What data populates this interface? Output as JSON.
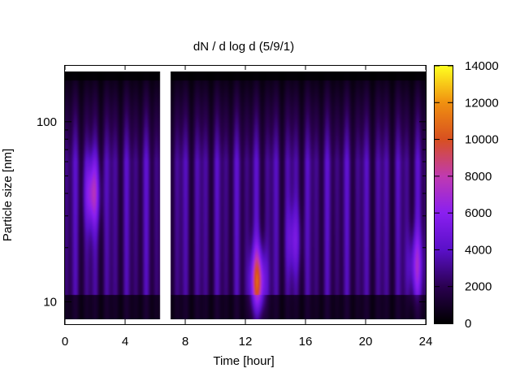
{
  "chart_data": {
    "type": "heatmap",
    "title": "dN / d log d (5/9/1)",
    "xlabel": "Time [hour]",
    "ylabel": "Particle size [nm]",
    "xlim": [
      0,
      24
    ],
    "ylim_nm": [
      8,
      190
    ],
    "y_scale": "log",
    "x_ticks": [
      0,
      4,
      8,
      12,
      16,
      20,
      24
    ],
    "x_tick_labels": [
      "0",
      "4",
      "8",
      "12",
      "16",
      "20",
      "24"
    ],
    "y_ticks": [
      10,
      100
    ],
    "y_tick_labels": [
      "10",
      "100"
    ],
    "colorbar": {
      "range": [
        0,
        14000
      ],
      "ticks": [
        0,
        2000,
        4000,
        6000,
        8000,
        10000,
        12000,
        14000
      ],
      "tick_labels": [
        "0",
        "2000",
        "4000",
        "6000",
        "8000",
        "10000",
        "12000",
        "14000"
      ],
      "colormap": [
        "#000000",
        "#2a0050",
        "#5a10c8",
        "#8a1ff0",
        "#c03ab0",
        "#d85020",
        "#f09010",
        "#ffff20"
      ]
    },
    "data_gaps_hours": [
      [
        6.3,
        7.0
      ]
    ],
    "features": [
      {
        "time_hour": 1.8,
        "size_nm": 40,
        "value": 7200
      },
      {
        "time_hour": 12.8,
        "size_nm": 13,
        "value": 10000
      },
      {
        "time_hour": 15.2,
        "size_nm": 22,
        "value": 5200
      },
      {
        "time_hour": 23.3,
        "size_nm": 16,
        "value": 6400
      }
    ],
    "background": {
      "low_size_nm": 10,
      "value_low": 2800,
      "mid_size_nm": 60,
      "value_mid": 3200,
      "high_size_nm": 180,
      "value_high": 600
    }
  }
}
